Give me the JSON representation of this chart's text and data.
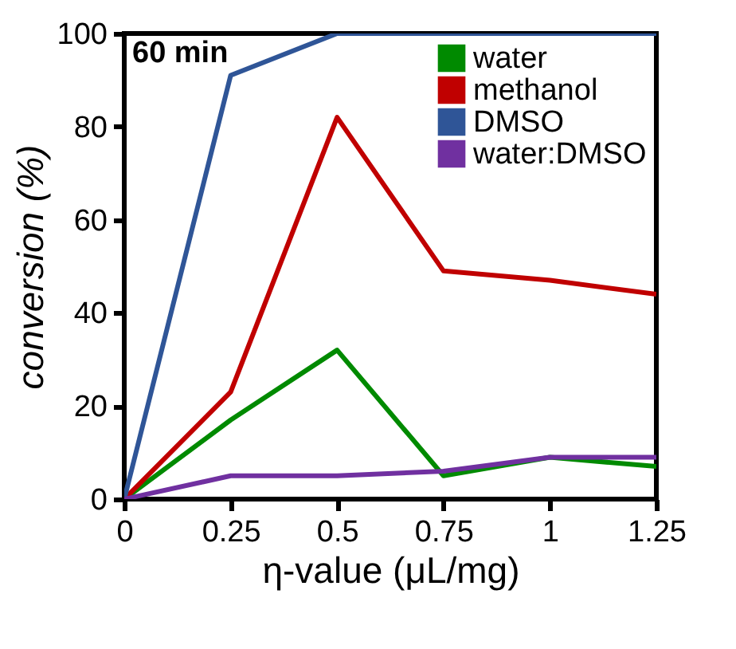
{
  "chart_data": {
    "type": "line",
    "xlabel": "η-value (μL/mg)",
    "ylabel": "conversion (%)",
    "annotations": [
      "60 min"
    ],
    "x": [
      0,
      0.25,
      0.5,
      0.75,
      1,
      1.25
    ],
    "series": [
      {
        "name": "water",
        "color": "#008a00",
        "values": [
          0,
          17,
          32,
          5,
          9,
          7
        ]
      },
      {
        "name": "methanol",
        "color": "#c00000",
        "values": [
          0,
          23,
          82,
          49,
          47,
          44
        ]
      },
      {
        "name": "DMSO",
        "color": "#2f5597",
        "values": [
          0,
          91,
          100,
          100,
          100,
          100
        ]
      },
      {
        "name": "water:DMSO",
        "color": "#7030a0",
        "values": [
          0,
          5,
          5,
          6,
          9,
          9
        ]
      }
    ],
    "xlim": [
      0,
      1.25
    ],
    "xticks": [
      0,
      0.25,
      0.5,
      0.75,
      1,
      1.25
    ],
    "ylim": [
      0,
      100
    ],
    "yticks": [
      0,
      20,
      40,
      60,
      80,
      100
    ],
    "grid": false,
    "legend": "top right",
    "marker": "none",
    "line_style": "solid"
  }
}
